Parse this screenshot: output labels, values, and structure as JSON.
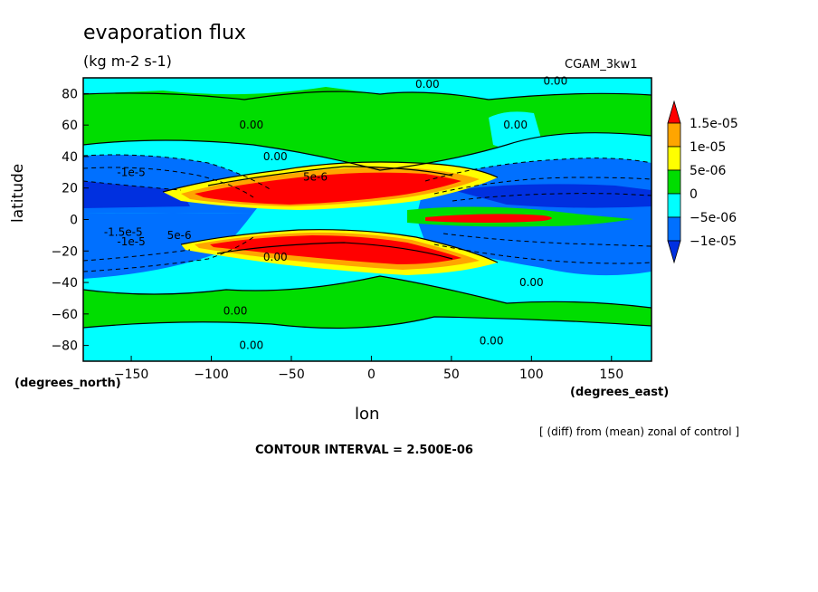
{
  "chart_data": {
    "type": "heatmap",
    "title": "evaporation flux",
    "units": "(kg m-2 s-1)",
    "dataset": "CGAM_3kw1",
    "xlabel": "lon",
    "ylabel": "latitude",
    "x_units": "(degrees_east)",
    "y_units": "(degrees_north)",
    "xlim": [
      -180,
      175
    ],
    "ylim": [
      -90,
      90
    ],
    "x_ticks": [
      -150,
      -100,
      -50,
      0,
      50,
      100,
      150
    ],
    "y_ticks": [
      -80,
      -60,
      -40,
      -20,
      0,
      20,
      40,
      60,
      80
    ],
    "footnote": "[ (diff) from (mean) zonal of control ]",
    "contour_interval": "CONTOUR INTERVAL = 2.500E-06",
    "legend": {
      "levels": [
        "1.5e-05",
        "1e-05",
        "5e-06",
        "0",
        "-5e-06",
        "-1e-05"
      ],
      "colors": [
        "#ff0000",
        "#ffa500",
        "#ffff00",
        "#00dd00",
        "#00ffff",
        "#0070ff",
        "#0030e0"
      ]
    },
    "contour_labels": [
      {
        "text": "0.00",
        "lon": 35,
        "lat": 86
      },
      {
        "text": "0.00",
        "lon": 115,
        "lat": 88
      },
      {
        "text": "0.00",
        "lon": -75,
        "lat": 60
      },
      {
        "text": "0.00",
        "lon": 90,
        "lat": 60
      },
      {
        "text": "0.00",
        "lon": -60,
        "lat": 40
      },
      {
        "text": "-1e-5",
        "lon": -150,
        "lat": 30
      },
      {
        "text": "5e-6",
        "lon": -35,
        "lat": 27
      },
      {
        "text": "-1.5e-5",
        "lon": -155,
        "lat": -8
      },
      {
        "text": "-1e-5",
        "lon": -150,
        "lat": -14
      },
      {
        "text": "5e-6",
        "lon": -120,
        "lat": -10
      },
      {
        "text": "0.00",
        "lon": -60,
        "lat": -24
      },
      {
        "text": "0.00",
        "lon": 100,
        "lat": -40
      },
      {
        "text": "0.00",
        "lon": -85,
        "lat": -58
      },
      {
        "text": "0.00",
        "lon": -75,
        "lat": -80
      },
      {
        "text": "0.00",
        "lon": 75,
        "lat": -77
      }
    ]
  }
}
